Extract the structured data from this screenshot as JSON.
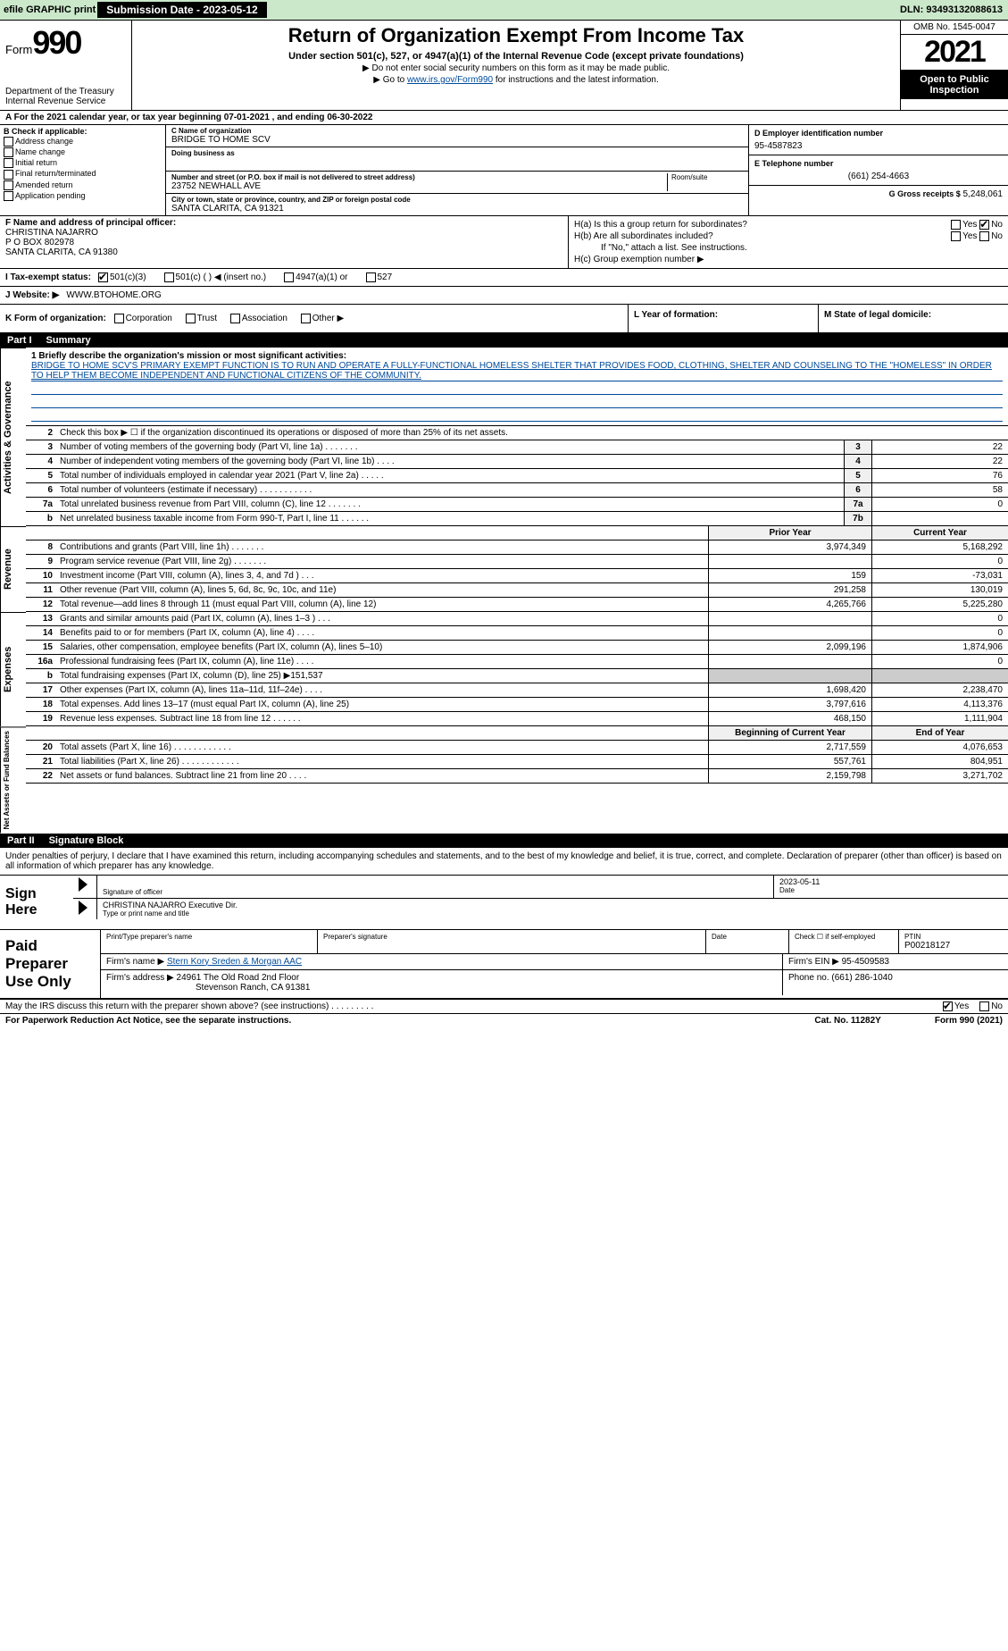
{
  "topbar": {
    "efile_label": "efile GRAPHIC print",
    "submission_label": "Submission Date - 2023-05-12",
    "dln_label": "DLN: 93493132088613"
  },
  "header": {
    "form_label": "Form",
    "form_number": "990",
    "dept1": "Department of the Treasury",
    "dept2": "Internal Revenue Service",
    "title": "Return of Organization Exempt From Income Tax",
    "sub1": "Under section 501(c), 527, or 4947(a)(1) of the Internal Revenue Code (except private foundations)",
    "sub2": "▶ Do not enter social security numbers on this form as it may be made public.",
    "sub3_pre": "▶ Go to ",
    "sub3_link": "www.irs.gov/Form990",
    "sub3_post": " for instructions and the latest information.",
    "omb": "OMB No. 1545-0047",
    "year": "2021",
    "open": "Open to Public Inspection"
  },
  "row_a": "A For the 2021 calendar year, or tax year beginning 07-01-2021    , and ending 06-30-2022",
  "sectionB": {
    "title": "B Check if applicable:",
    "items": [
      "Address change",
      "Name change",
      "Initial return",
      "Final return/terminated",
      "Amended return",
      "Application pending"
    ]
  },
  "sectionC": {
    "name_lbl": "C Name of organization",
    "name": "BRIDGE TO HOME SCV",
    "dba_lbl": "Doing business as",
    "addr_lbl": "Number and street (or P.O. box if mail is not delivered to street address)",
    "addr": "23752 NEWHALL AVE",
    "room_lbl": "Room/suite",
    "city_lbl": "City or town, state or province, country, and ZIP or foreign postal code",
    "city": "SANTA CLARITA, CA  91321"
  },
  "sectionD": {
    "ein_lbl": "D Employer identification number",
    "ein": "95-4587823",
    "phone_lbl": "E Telephone number",
    "phone": "(661) 254-4663",
    "gross_lbl": "G Gross receipts $",
    "gross": "5,248,061"
  },
  "sectionF": {
    "lbl": "F Name and address of principal officer:",
    "name": "CHRISTINA NAJARRO",
    "addr1": "P O BOX 802978",
    "addr2": "SANTA CLARITA, CA  91380"
  },
  "sectionH": {
    "a": "H(a)  Is this a group return for subordinates?",
    "b": "H(b)  Are all subordinates included?",
    "b_note": "If \"No,\" attach a list. See instructions.",
    "c": "H(c)  Group exemption number ▶",
    "yes": "Yes",
    "no": "No"
  },
  "taxStatus": {
    "lbl": "I  Tax-exempt status:",
    "opts": [
      "501(c)(3)",
      "501(c) (  ) ◀ (insert no.)",
      "4947(a)(1) or",
      "527"
    ]
  },
  "website": {
    "lbl": "J Website: ▶",
    "val": "WWW.BTOHOME.ORG"
  },
  "k_row": {
    "lbl": "K Form of organization:",
    "opts": [
      "Corporation",
      "Trust",
      "Association",
      "Other ▶"
    ]
  },
  "lm": {
    "l_lbl": "L Year of formation:",
    "m_lbl": "M State of legal domicile:"
  },
  "part1": {
    "num": "Part I",
    "title": "Summary",
    "side1": "Activities & Governance",
    "line1_lbl": "1  Briefly describe the organization's mission or most significant activities:",
    "mission": "BRIDGE TO HOME SCV'S PRIMARY EXEMPT FUNCTION IS TO RUN AND OPERATE A FULLY-FUNCTIONAL HOMELESS SHELTER THAT PROVIDES FOOD, CLOTHING, SHELTER AND COUNSELING TO THE \"HOMELESS\" IN ORDER TO HELP THEM BECOME INDEPENDENT AND FUNCTIONAL CITIZENS OF THE COMMUNITY.",
    "line2": "Check this box ▶ ☐  if the organization discontinued its operations or disposed of more than 25% of its net assets.",
    "rows_gov": [
      {
        "n": "3",
        "d": "Number of voting members of the governing body (Part VI, line 1a)  .     .     .     .     .     .     .",
        "box": "3",
        "v": "22"
      },
      {
        "n": "4",
        "d": "Number of independent voting members of the governing body (Part VI, line 1b)  .     .     .     .",
        "box": "4",
        "v": "22"
      },
      {
        "n": "5",
        "d": "Total number of individuals employed in calendar year 2021 (Part V, line 2a)  .     .     .     .     .",
        "box": "5",
        "v": "76"
      },
      {
        "n": "6",
        "d": "Total number of volunteers (estimate if necessary)   .     .     .     .     .     .     .     .     .     .     .",
        "box": "6",
        "v": "58"
      },
      {
        "n": "7a",
        "d": "Total unrelated business revenue from Part VIII, column (C), line 12   .     .     .     .     .     .     .",
        "box": "7a",
        "v": "0"
      },
      {
        "n": "b",
        "d": "Net unrelated business taxable income from Form 990-T, Part I, line 11   .     .     .     .     .     .",
        "box": "7b",
        "v": ""
      }
    ],
    "side2": "Revenue",
    "py_hdr": "Prior Year",
    "cy_hdr": "Current Year",
    "rows_rev": [
      {
        "n": "8",
        "d": "Contributions and grants (Part VIII, line 1h)   .     .     .     .     .     .     .",
        "py": "3,974,349",
        "cy": "5,168,292"
      },
      {
        "n": "9",
        "d": "Program service revenue (Part VIII, line 2g)   .     .     .     .     .     .     .",
        "py": "",
        "cy": "0"
      },
      {
        "n": "10",
        "d": "Investment income (Part VIII, column (A), lines 3, 4, and 7d )   .     .     .",
        "py": "159",
        "cy": "-73,031"
      },
      {
        "n": "11",
        "d": "Other revenue (Part VIII, column (A), lines 5, 6d, 8c, 9c, 10c, and 11e)",
        "py": "291,258",
        "cy": "130,019"
      },
      {
        "n": "12",
        "d": "Total revenue—add lines 8 through 11 (must equal Part VIII, column (A), line 12)",
        "py": "4,265,766",
        "cy": "5,225,280"
      }
    ],
    "side3": "Expenses",
    "rows_exp": [
      {
        "n": "13",
        "d": "Grants and similar amounts paid (Part IX, column (A), lines 1–3 )   .     .     .",
        "py": "",
        "cy": "0"
      },
      {
        "n": "14",
        "d": "Benefits paid to or for members (Part IX, column (A), line 4)   .     .     .     .",
        "py": "",
        "cy": "0"
      },
      {
        "n": "15",
        "d": "Salaries, other compensation, employee benefits (Part IX, column (A), lines 5–10)",
        "py": "2,099,196",
        "cy": "1,874,906"
      },
      {
        "n": "16a",
        "d": "Professional fundraising fees (Part IX, column (A), line 11e)   .     .     .     .",
        "py": "",
        "cy": "0"
      },
      {
        "n": "b",
        "d": "Total fundraising expenses (Part IX, column (D), line 25) ▶151,537",
        "py": null,
        "cy": null,
        "shaded": true
      },
      {
        "n": "17",
        "d": "Other expenses (Part IX, column (A), lines 11a–11d, 11f–24e)   .     .     .     .",
        "py": "1,698,420",
        "cy": "2,238,470"
      },
      {
        "n": "18",
        "d": "Total expenses. Add lines 13–17 (must equal Part IX, column (A), line 25)",
        "py": "3,797,616",
        "cy": "4,113,376"
      },
      {
        "n": "19",
        "d": "Revenue less expenses. Subtract line 18 from line 12   .     .     .     .     .     .",
        "py": "468,150",
        "cy": "1,111,904"
      }
    ],
    "side4": "Net Assets or Fund Balances",
    "boy_hdr": "Beginning of Current Year",
    "eoy_hdr": "End of Year",
    "rows_net": [
      {
        "n": "20",
        "d": "Total assets (Part X, line 16)   .     .     .     .     .     .     .     .     .     .     .     .",
        "py": "2,717,559",
        "cy": "4,076,653"
      },
      {
        "n": "21",
        "d": "Total liabilities (Part X, line 26)   .     .     .     .     .     .     .     .     .     .     .     .",
        "py": "557,761",
        "cy": "804,951"
      },
      {
        "n": "22",
        "d": "Net assets or fund balances. Subtract line 21 from line 20   .     .     .     .",
        "py": "2,159,798",
        "cy": "3,271,702"
      }
    ]
  },
  "part2": {
    "num": "Part II",
    "title": "Signature Block",
    "penalties": "Under penalties of perjury, I declare that I have examined this return, including accompanying schedules and statements, and to the best of my knowledge and belief, it is true, correct, and complete. Declaration of preparer (other than officer) is based on all information of which preparer has any knowledge.",
    "sign_here": "Sign Here",
    "sig_officer_lbl": "Signature of officer",
    "sig_date": "2023-05-11",
    "date_lbl": "Date",
    "officer_name": "CHRISTINA NAJARRO  Executive Dir.",
    "type_lbl": "Type or print name and title",
    "paid_lbl": "Paid Preparer Use Only",
    "prep_name_lbl": "Print/Type preparer's name",
    "prep_sig_lbl": "Preparer's signature",
    "prep_date_lbl": "Date",
    "self_emp_lbl": "Check ☐ if self-employed",
    "ptin_lbl": "PTIN",
    "ptin": "P00218127",
    "firm_name_lbl": "Firm's name    ▶",
    "firm_name": "Stern Kory Sreden & Morgan AAC",
    "firm_ein_lbl": "Firm's EIN ▶",
    "firm_ein": "95-4509583",
    "firm_addr_lbl": "Firm's address ▶",
    "firm_addr1": "24961 The Old Road 2nd Floor",
    "firm_addr2": "Stevenson Ranch, CA  91381",
    "firm_phone_lbl": "Phone no.",
    "firm_phone": "(661) 286-1040",
    "discuss": "May the IRS discuss this return with the preparer shown above? (see instructions)   .     .     .     .     .     .     .     .     .",
    "yes": "Yes",
    "no": "No"
  },
  "footer": {
    "paperwork": "For Paperwork Reduction Act Notice, see the separate instructions.",
    "cat": "Cat. No. 11282Y",
    "form": "Form 990 (2021)"
  }
}
